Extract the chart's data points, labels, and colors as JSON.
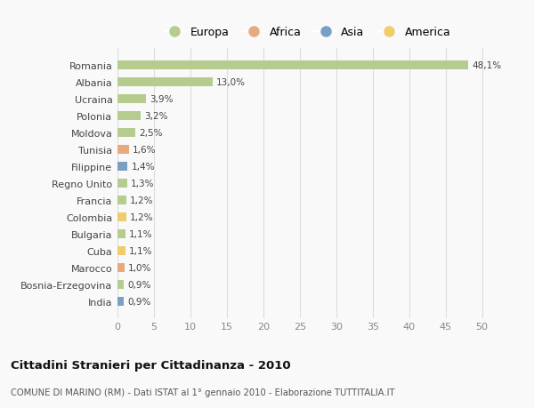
{
  "countries": [
    "Romania",
    "Albania",
    "Ucraina",
    "Polonia",
    "Moldova",
    "Tunisia",
    "Filippine",
    "Regno Unito",
    "Francia",
    "Colombia",
    "Bulgaria",
    "Cuba",
    "Marocco",
    "Bosnia-Erzegovina",
    "India"
  ],
  "values": [
    48.1,
    13.0,
    3.9,
    3.2,
    2.5,
    1.6,
    1.4,
    1.3,
    1.2,
    1.2,
    1.1,
    1.1,
    1.0,
    0.9,
    0.9
  ],
  "labels": [
    "48,1%",
    "13,0%",
    "3,9%",
    "3,2%",
    "2,5%",
    "1,6%",
    "1,4%",
    "1,3%",
    "1,2%",
    "1,2%",
    "1,1%",
    "1,1%",
    "1,0%",
    "0,9%",
    "0,9%"
  ],
  "continents": [
    "Europa",
    "Europa",
    "Europa",
    "Europa",
    "Europa",
    "Africa",
    "Asia",
    "Europa",
    "Europa",
    "America",
    "Europa",
    "America",
    "Africa",
    "Europa",
    "Asia"
  ],
  "continent_colors": {
    "Europa": "#b5cc8e",
    "Africa": "#e8a97e",
    "Asia": "#7a9fc4",
    "America": "#f0cc6e"
  },
  "legend_order": [
    "Europa",
    "Africa",
    "Asia",
    "America"
  ],
  "legend_colors": [
    "#b5cc8e",
    "#e8a97e",
    "#7a9fc4",
    "#f0cc6e"
  ],
  "title": "Cittadini Stranieri per Cittadinanza - 2010",
  "subtitle": "COMUNE DI MARINO (RM) - Dati ISTAT al 1° gennaio 2010 - Elaborazione TUTTITALIA.IT",
  "xlim": [
    0,
    52
  ],
  "xticks": [
    0,
    5,
    10,
    15,
    20,
    25,
    30,
    35,
    40,
    45,
    50
  ],
  "background_color": "#f9f9f9",
  "grid_color": "#dddddd",
  "bar_height": 0.55
}
